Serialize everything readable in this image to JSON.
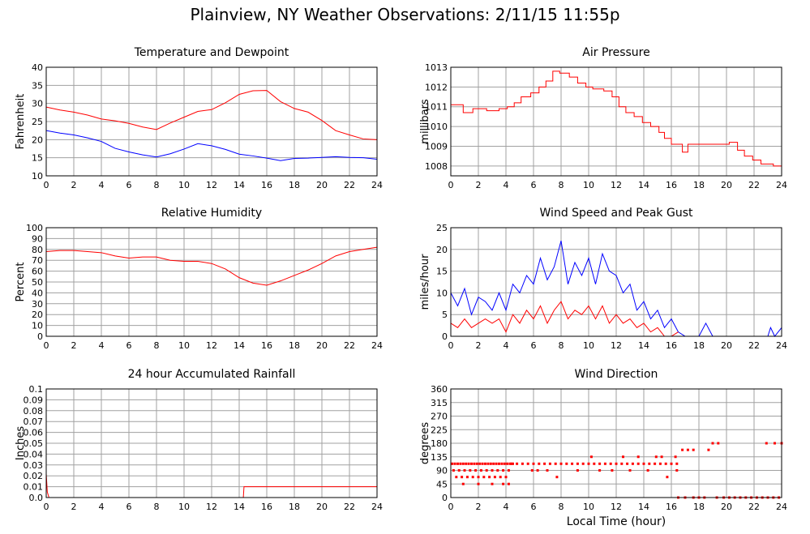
{
  "page": {
    "title": "Plainview, NY Weather Observations: 2/11/15 11:55p",
    "x_axis_label": "Local Time (hour)"
  },
  "colors": {
    "red": "#ff0000",
    "blue": "#0000ff",
    "grid": "#a0a0a0"
  },
  "chart_data": [
    {
      "id": "temp",
      "type": "line",
      "title": "Temperature and Dewpoint",
      "ylabel": "Fahrenheit",
      "xlabel": "",
      "xlim": [
        0,
        24
      ],
      "ylim": [
        10,
        40
      ],
      "xticks": [
        0,
        2,
        4,
        6,
        8,
        10,
        12,
        14,
        16,
        18,
        20,
        22,
        24
      ],
      "yticks": [
        10,
        15,
        20,
        25,
        30,
        35,
        40
      ],
      "yticklabels": [
        "10",
        "15",
        "20",
        "25",
        "30",
        "35",
        "40"
      ],
      "grid": true,
      "series": [
        {
          "color": "#ff0000",
          "x": [
            0,
            1,
            2,
            3,
            4,
            5,
            6,
            7,
            8,
            9,
            10,
            11,
            12,
            13,
            14,
            15,
            16,
            17,
            18,
            19,
            20,
            21,
            22,
            23,
            24
          ],
          "y": [
            29,
            28.2,
            27.6,
            26.8,
            25.7,
            25.2,
            24.5,
            23.5,
            22.8,
            24.6,
            26.2,
            27.8,
            28.3,
            30.2,
            32.5,
            33.5,
            33.6,
            30.5,
            28.6,
            27.6,
            25.3,
            22.5,
            21.3,
            20.2,
            20
          ]
        },
        {
          "color": "#0000ff",
          "x": [
            0,
            1,
            2,
            3,
            4,
            5,
            6,
            7,
            8,
            9,
            10,
            11,
            12,
            13,
            14,
            15,
            16,
            17,
            18,
            19,
            20,
            21,
            22,
            23,
            24
          ],
          "y": [
            22.5,
            21.8,
            21.3,
            20.5,
            19.5,
            17.6,
            16.6,
            15.8,
            15.2,
            16.1,
            17.4,
            18.9,
            18.3,
            17.3,
            16,
            15.5,
            14.9,
            14.2,
            14.8,
            14.9,
            15.1,
            15.3,
            15.1,
            15,
            14.6
          ]
        }
      ]
    },
    {
      "id": "pressure",
      "type": "line",
      "title": "Air Pressure",
      "ylabel": "millibars",
      "xlabel": "",
      "xlim": [
        0,
        24
      ],
      "ylim": [
        1007.5,
        1013
      ],
      "xticks": [
        0,
        2,
        4,
        6,
        8,
        10,
        12,
        14,
        16,
        18,
        20,
        22,
        24
      ],
      "yticks": [
        1008,
        1009,
        1010,
        1011,
        1012,
        1013
      ],
      "yticklabels": [
        "1008",
        "1009",
        "1010",
        "1011",
        "1012",
        "1013"
      ],
      "grid": true,
      "series": [
        {
          "color": "#ff0000",
          "step": true,
          "x": [
            0,
            0.9,
            1.6,
            2.6,
            3.5,
            4.1,
            4.6,
            5.1,
            5.8,
            6.4,
            6.9,
            7.4,
            7.9,
            8.6,
            9.2,
            9.8,
            10.3,
            11.1,
            11.7,
            12.2,
            12.7,
            13.3,
            13.9,
            14.5,
            15.1,
            15.5,
            16,
            16.8,
            17.2,
            18.4,
            19.6,
            20.2,
            20.8,
            21.3,
            21.9,
            22.5,
            23.4,
            24
          ],
          "y": [
            1011.1,
            1010.7,
            1010.9,
            1010.8,
            1010.9,
            1011,
            1011.2,
            1011.5,
            1011.7,
            1012,
            1012.3,
            1012.8,
            1012.7,
            1012.5,
            1012.2,
            1012,
            1011.9,
            1011.8,
            1011.5,
            1011,
            1010.7,
            1010.5,
            1010.2,
            1010,
            1009.7,
            1009.4,
            1009.1,
            1008.7,
            1009.1,
            1009.1,
            1009.1,
            1009.2,
            1008.8,
            1008.5,
            1008.3,
            1008.1,
            1008,
            1007.9
          ]
        }
      ]
    },
    {
      "id": "humidity",
      "type": "line",
      "title": "Relative Humidity",
      "ylabel": "Percent",
      "xlabel": "",
      "xlim": [
        0,
        24
      ],
      "ylim": [
        0,
        100
      ],
      "xticks": [
        0,
        2,
        4,
        6,
        8,
        10,
        12,
        14,
        16,
        18,
        20,
        22,
        24
      ],
      "yticks": [
        0,
        10,
        20,
        30,
        40,
        50,
        60,
        70,
        80,
        90,
        100
      ],
      "yticklabels": [
        "0",
        "10",
        "20",
        "30",
        "40",
        "50",
        "60",
        "70",
        "80",
        "90",
        "100"
      ],
      "grid": true,
      "series": [
        {
          "color": "#ff0000",
          "x": [
            0,
            1,
            2,
            3,
            4,
            5,
            6,
            7,
            8,
            9,
            10,
            11,
            12,
            13,
            14,
            15,
            16,
            17,
            18,
            19,
            20,
            21,
            22,
            23,
            24
          ],
          "y": [
            78,
            79,
            79,
            78,
            77,
            74,
            72,
            73,
            73,
            70,
            69,
            69,
            67,
            62,
            54,
            49,
            47,
            51,
            56,
            61,
            67,
            74,
            78,
            80,
            82
          ]
        }
      ]
    },
    {
      "id": "wind",
      "type": "line",
      "title": "Wind Speed and Peak Gust",
      "ylabel": "miles/hour",
      "xlabel": "",
      "xlim": [
        0,
        24
      ],
      "ylim": [
        0,
        25
      ],
      "xticks": [
        0,
        2,
        4,
        6,
        8,
        10,
        12,
        14,
        16,
        18,
        20,
        22,
        24
      ],
      "yticks": [
        0,
        5,
        10,
        15,
        20,
        25
      ],
      "yticklabels": [
        "0",
        "5",
        "10",
        "15",
        "20",
        "25"
      ],
      "grid": true,
      "series": [
        {
          "color": "#0000ff",
          "x": [
            0,
            0.5,
            1,
            1.5,
            2,
            2.5,
            3,
            3.5,
            4,
            4.5,
            5,
            5.5,
            6,
            6.5,
            7,
            7.5,
            8,
            8.5,
            9,
            9.5,
            10,
            10.5,
            11,
            11.5,
            12,
            12.5,
            13,
            13.5,
            14,
            14.5,
            15,
            15.5,
            16,
            16.5,
            17,
            17.5,
            18,
            18.5,
            19,
            19.5,
            20,
            22,
            23,
            23.2,
            23.5,
            24
          ],
          "y": [
            10,
            7,
            11,
            5,
            9,
            8,
            6,
            10,
            6,
            12,
            10,
            14,
            12,
            18,
            13,
            16,
            22,
            12,
            17,
            14,
            18,
            12,
            19,
            15,
            14,
            10,
            12,
            6,
            8,
            4,
            6,
            2,
            4,
            1,
            0,
            0,
            0,
            3,
            0,
            0,
            0,
            0,
            0,
            2,
            0,
            2
          ]
        },
        {
          "color": "#ff0000",
          "x": [
            0,
            0.5,
            1,
            1.5,
            2,
            2.5,
            3,
            3.5,
            4,
            4.5,
            5,
            5.5,
            6,
            6.5,
            7,
            7.5,
            8,
            8.5,
            9,
            9.5,
            10,
            10.5,
            11,
            11.5,
            12,
            12.5,
            13,
            13.5,
            14,
            14.5,
            15,
            15.5,
            16,
            16.5
          ],
          "y": [
            3,
            2,
            4,
            2,
            3,
            4,
            3,
            4,
            1,
            5,
            3,
            6,
            4,
            7,
            3,
            6,
            8,
            4,
            6,
            5,
            7,
            4,
            7,
            3,
            5,
            3,
            4,
            2,
            3,
            1,
            2,
            0,
            0,
            1
          ]
        }
      ]
    },
    {
      "id": "rain",
      "type": "line",
      "title": "24 hour Accumulated Rainfall",
      "ylabel": "Inches",
      "xlabel": "",
      "xlim": [
        0,
        24
      ],
      "ylim": [
        0,
        0.1
      ],
      "xticks": [
        0,
        2,
        4,
        6,
        8,
        10,
        12,
        14,
        16,
        18,
        20,
        22,
        24
      ],
      "yticks": [
        0,
        0.01,
        0.02,
        0.03,
        0.04,
        0.05,
        0.06,
        0.07,
        0.08,
        0.09,
        0.1
      ],
      "yticklabels": [
        "0.0",
        "0.01",
        "0.02",
        "0.03",
        "0.04",
        "0.05",
        "0.06",
        "0.07",
        "0.08",
        "0.09",
        "0.1"
      ],
      "grid": true,
      "series": [
        {
          "color": "#ff0000",
          "x": [
            0,
            0.08,
            0.2,
            14.3,
            14.35,
            24
          ],
          "y": [
            0.022,
            0.005,
            0,
            0,
            0.01,
            0.01
          ]
        }
      ]
    },
    {
      "id": "direction",
      "type": "scatter",
      "title": "Wind Direction",
      "ylabel": "degrees",
      "xlabel": "Local Time (hour)",
      "xlim": [
        0,
        24
      ],
      "ylim": [
        0,
        360
      ],
      "xticks": [
        0,
        2,
        4,
        6,
        8,
        10,
        12,
        14,
        16,
        18,
        20,
        22,
        24
      ],
      "yticks": [
        0,
        45,
        90,
        135,
        180,
        225,
        270,
        315,
        360
      ],
      "yticklabels": [
        "0",
        "45",
        "90",
        "135",
        "180",
        "225",
        "270",
        "315",
        "360"
      ],
      "grid": true,
      "series": [
        {
          "color": "#ff0000",
          "x": [
            0.1,
            0.3,
            0.5,
            0.7,
            0.9,
            1.1,
            1.3,
            1.5,
            1.7,
            1.9,
            2.1,
            2.3,
            2.5,
            2.7,
            2.9,
            3.1,
            3.3,
            3.5,
            3.7,
            3.9,
            4.1,
            4.3,
            4.5,
            0.2,
            0.6,
            1.0,
            1.4,
            1.8,
            2.2,
            2.6,
            3.0,
            3.4,
            3.8,
            4.2,
            0.4,
            0.8,
            1.2,
            1.6,
            2.0,
            2.4,
            2.8,
            3.2,
            3.6,
            4.0,
            4.4,
            4.8,
            5.2,
            5.6,
            6.0,
            6.4,
            6.8,
            7.2,
            7.6,
            8.0,
            8.4,
            8.8,
            9.2,
            9.6,
            10.0,
            10.4,
            10.8,
            11.2,
            11.6,
            12.0,
            12.4,
            12.8,
            13.2,
            13.6,
            14.0,
            14.4,
            14.8,
            15.2,
            15.6,
            16.0,
            16.4,
            0.9,
            2.0,
            3.0,
            3.8,
            4.2,
            5.9,
            6.3,
            7.0,
            7.7,
            9.2,
            10.8,
            11.7,
            13.0,
            14.3,
            15.7,
            16.4,
            10.2,
            12.5,
            13.6,
            14.9,
            15.3,
            16.3,
            16.8,
            17.2,
            17.6,
            18.7,
            19.0,
            19.4,
            22.9,
            23.5,
            24.0,
            16.5,
            17.0,
            17.6,
            18.0,
            18.4,
            19.3,
            19.8,
            20.2,
            20.6,
            21.0,
            21.4,
            21.8,
            22.2,
            22.6,
            23.0,
            23.4,
            23.8
          ],
          "y": [
            112,
            112,
            112,
            112,
            112,
            112,
            112,
            112,
            112,
            112,
            112,
            112,
            112,
            112,
            112,
            112,
            112,
            112,
            112,
            112,
            112,
            112,
            112,
            90,
            90,
            90,
            90,
            90,
            90,
            90,
            90,
            90,
            90,
            90,
            68,
            68,
            68,
            68,
            68,
            68,
            68,
            68,
            68,
            68,
            112,
            112,
            112,
            112,
            112,
            112,
            112,
            112,
            112,
            112,
            112,
            112,
            112,
            112,
            112,
            112,
            112,
            112,
            112,
            112,
            112,
            112,
            112,
            112,
            112,
            112,
            112,
            112,
            112,
            112,
            112,
            45,
            45,
            45,
            45,
            45,
            90,
            90,
            90,
            68,
            90,
            90,
            90,
            90,
            90,
            68,
            90,
            135,
            135,
            135,
            135,
            135,
            135,
            158,
            158,
            158,
            158,
            180,
            180,
            180,
            180,
            180,
            0,
            0,
            0,
            0,
            0,
            0,
            0,
            0,
            0,
            0,
            0,
            0,
            0,
            0,
            0,
            0,
            0
          ]
        }
      ]
    }
  ]
}
